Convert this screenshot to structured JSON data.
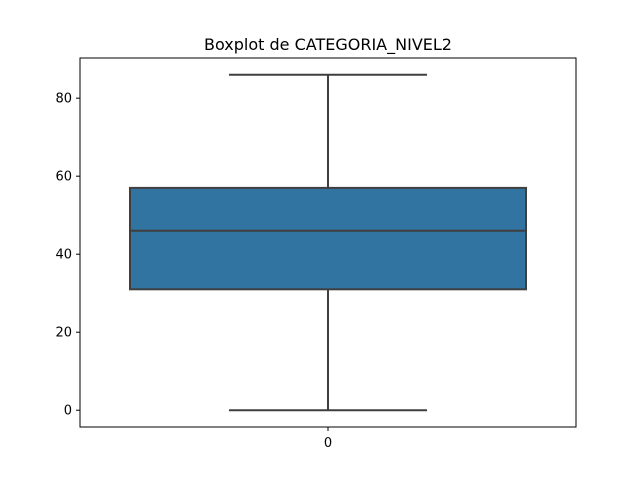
{
  "chart_data": {
    "type": "box",
    "title": "Boxplot de CATEGORIA_NIVEL2",
    "xlabel": "",
    "ylabel": "",
    "categories": [
      "0"
    ],
    "ylim": [
      -4.3,
      90.3
    ],
    "yticks": [
      0,
      20,
      40,
      60,
      80
    ],
    "grid": false,
    "series": [
      {
        "whisker_low": 0,
        "q1": 31,
        "median": 46,
        "q3": 57,
        "whisker_high": 86
      }
    ],
    "colors": {
      "box_fill": "#3274a1",
      "line": "#3f3f3f"
    }
  }
}
